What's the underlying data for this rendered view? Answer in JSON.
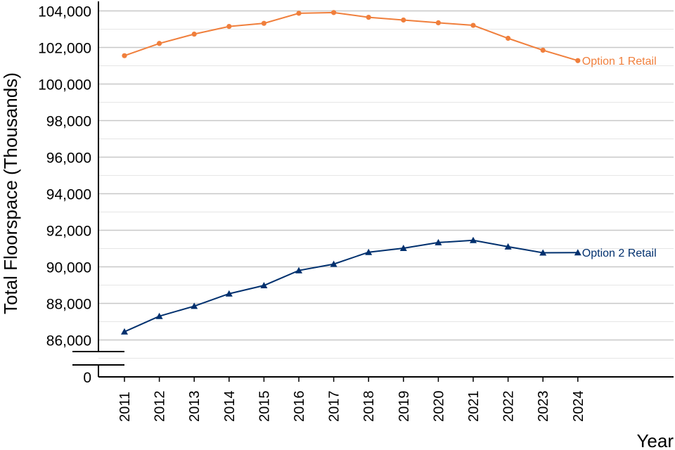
{
  "chart_data": {
    "type": "line",
    "xlabel": "Year",
    "ylabel": "Total Floorspace (Thousands)",
    "x": [
      "2011",
      "2012",
      "2013",
      "2014",
      "2015",
      "2016",
      "2017",
      "2018",
      "2019",
      "2020",
      "2021",
      "2022",
      "2023",
      "2024"
    ],
    "y_axis_break": true,
    "y_break_label": "0",
    "ylim": [
      84000,
      104000
    ],
    "y_ticks": [
      86000,
      88000,
      90000,
      92000,
      94000,
      96000,
      98000,
      100000,
      102000,
      104000
    ],
    "y_tick_labels": [
      "86,000",
      "88,000",
      "90,000",
      "92,000",
      "94,000",
      "96,000",
      "98,000",
      "100,000",
      "102,000",
      "104,000"
    ],
    "grid": "horizontal",
    "series": [
      {
        "name": "Option 1 Retail",
        "color": "#f07f3c",
        "marker": "circle",
        "values": [
          101550,
          102220,
          102730,
          103150,
          103320,
          103870,
          103910,
          103650,
          103500,
          103350,
          103210,
          102500,
          101850,
          101280
        ]
      },
      {
        "name": "Option 2 Retail",
        "color": "#00306e",
        "marker": "triangle",
        "values": [
          86450,
          87300,
          87850,
          88530,
          88980,
          89800,
          90150,
          90800,
          91020,
          91330,
          91450,
          91100,
          90770,
          90780
        ]
      }
    ]
  }
}
